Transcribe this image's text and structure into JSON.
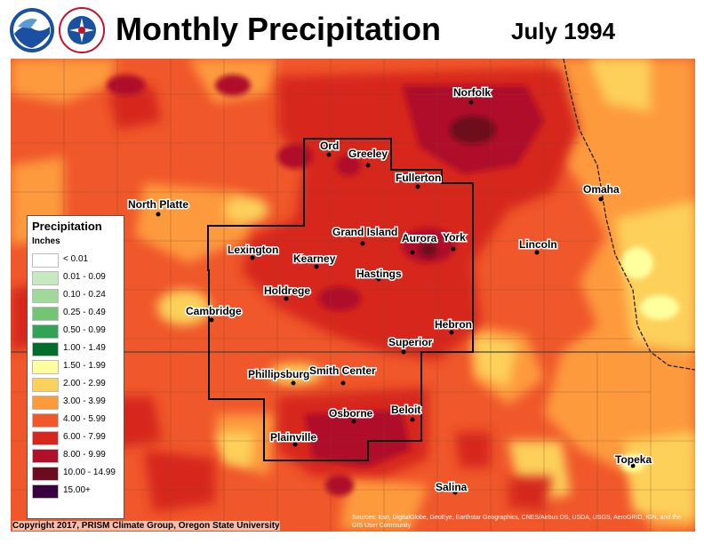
{
  "title": "Monthly Precipitation",
  "period": "July 1994",
  "logos": [
    {
      "name": "noaa-logo",
      "text": "NOAA"
    },
    {
      "name": "nws-logo",
      "text": "NATIONAL WEATHER SERVICE"
    }
  ],
  "legend": {
    "title": "Precipitation",
    "unit": "Inches",
    "items": [
      {
        "label": "< 0.01",
        "color": "#ffffff"
      },
      {
        "label": "0.01 - 0.09",
        "color": "#c7e9c0"
      },
      {
        "label": "0.10 - 0.24",
        "color": "#a1d99b"
      },
      {
        "label": "0.25 - 0.49",
        "color": "#74c476"
      },
      {
        "label": "0.50 - 0.99",
        "color": "#31a354"
      },
      {
        "label": "1.00 - 1.49",
        "color": "#006d2c"
      },
      {
        "label": "1.50 - 1.99",
        "color": "#ffff9e"
      },
      {
        "label": "2.00 - 2.99",
        "color": "#fdd05a"
      },
      {
        "label": "3.00 - 3.99",
        "color": "#fd9a3c"
      },
      {
        "label": "4.00 - 5.99",
        "color": "#f0572a"
      },
      {
        "label": "6.00 - 7.99",
        "color": "#d7261e"
      },
      {
        "label": "8.00 - 9.99",
        "color": "#b0102a"
      },
      {
        "label": "10.00 - 14.99",
        "color": "#6e0a1e"
      },
      {
        "label": "15.00+",
        "color": "#3a0040"
      }
    ]
  },
  "cities": [
    {
      "name": "Norfolk"
    },
    {
      "name": "Ord"
    },
    {
      "name": "Greeley"
    },
    {
      "name": "Fullerton"
    },
    {
      "name": "Omaha"
    },
    {
      "name": "North Platte"
    },
    {
      "name": "Grand Island"
    },
    {
      "name": "Aurora"
    },
    {
      "name": "York"
    },
    {
      "name": "Lincoln"
    },
    {
      "name": "Lexington"
    },
    {
      "name": "Kearney"
    },
    {
      "name": "Hastings"
    },
    {
      "name": "Holdrege"
    },
    {
      "name": "Cambridge"
    },
    {
      "name": "Hebron"
    },
    {
      "name": "Superior"
    },
    {
      "name": "Phillipsburg"
    },
    {
      "name": "Smith Center"
    },
    {
      "name": "Osborne"
    },
    {
      "name": "Beloit"
    },
    {
      "name": "Plainville"
    },
    {
      "name": "Topeka"
    },
    {
      "name": "Salina"
    }
  ],
  "copyright": "Copyright 2017, PRISM Climate Group, Oregon State University",
  "attribution": "Sources: Esri, DigitalGlobe, GeoEye, Earthstar Geographics, CNES/Airbus DS, USDA, USGS, AeroGRID, IGN, and the GIS User Community"
}
